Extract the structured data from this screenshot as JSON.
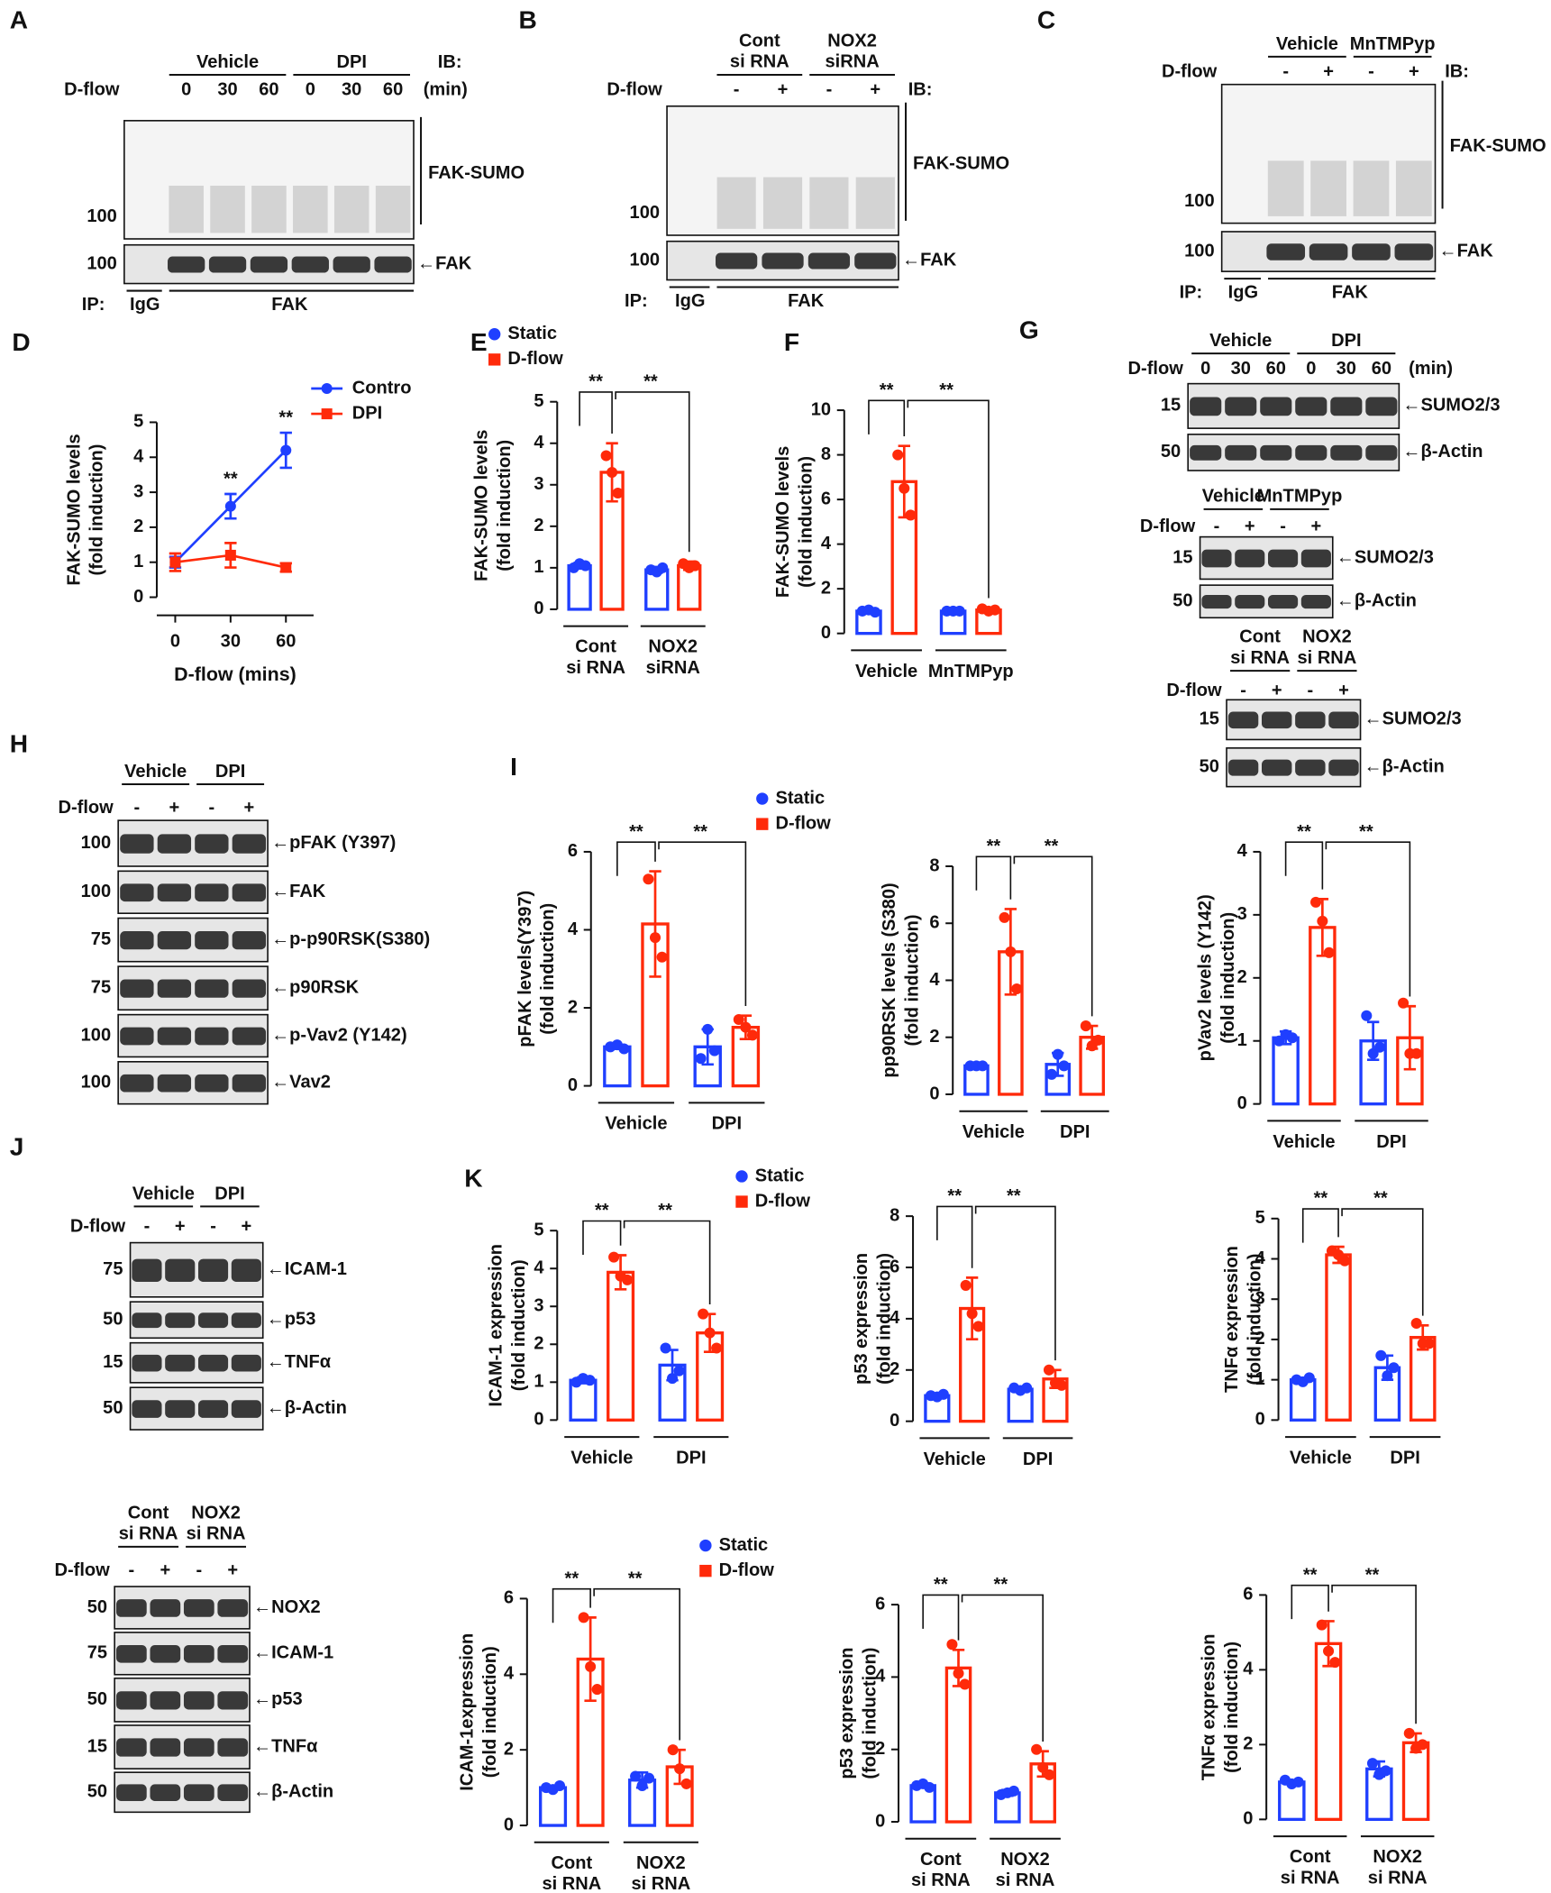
{
  "blots": [
    {
      "letter": "A",
      "groups": [
        "Vehicle",
        "DPI"
      ],
      "ib": "IB:",
      "flow": "D-flow",
      "lanes": [
        "0",
        "30",
        "60",
        "0",
        "30",
        "60"
      ],
      "unit": "(min)",
      "rows": [
        {
          "mw": "100",
          "label": "FAK-SUMO"
        },
        {
          "mw": "100",
          "label": "←FAK"
        }
      ],
      "ip": {
        "label": "IP:",
        "groups": [
          "IgG",
          "FAK"
        ]
      }
    },
    {
      "letter": "B",
      "groups": [
        "Cont\nsi RNA",
        "NOX2\nsiRNA"
      ],
      "ib": "IB:",
      "flow": "D-flow",
      "lanes": [
        "-",
        "+",
        "-",
        "+"
      ],
      "rows": [
        {
          "mw": "100",
          "label": "FAK-SUMO"
        },
        {
          "mw": "100",
          "label": "←FAK"
        }
      ],
      "ip": {
        "label": "IP:",
        "groups": [
          "IgG",
          "FAK"
        ]
      }
    },
    {
      "letter": "C",
      "groups": [
        "Vehicle",
        "MnTMPyp"
      ],
      "ib": "IB:",
      "flow": "D-flow",
      "lanes": [
        "-",
        "+",
        "-",
        "+"
      ],
      "rows": [
        {
          "mw": "100",
          "label": "FAK-SUMO"
        },
        {
          "mw": "100",
          "label": "←FAK"
        }
      ],
      "ip": {
        "label": "IP:",
        "groups": [
          "IgG",
          "FAK"
        ]
      }
    },
    {
      "letter": "G",
      "groups": [
        "Vehicle",
        "DPI"
      ],
      "flow": "D-flow",
      "lanes": [
        "0",
        "30",
        "60",
        "0",
        "30",
        "60"
      ],
      "unit": "(min)",
      "rows": [
        {
          "mw": "15",
          "label": "←SUMO2/3"
        },
        {
          "mw": "50",
          "label": "←β-Actin"
        }
      ]
    },
    {
      "groups": [
        "Vehicle",
        "MnTMPyp"
      ],
      "flow": "D-flow",
      "lanes": [
        "-",
        "+",
        "-",
        "+"
      ],
      "rows": [
        {
          "mw": "15",
          "label": "←SUMO2/3"
        },
        {
          "mw": "50",
          "label": "←β-Actin"
        }
      ]
    },
    {
      "groups": [
        "Cont\nsi RNA",
        "NOX2\nsi RNA"
      ],
      "flow": "D-flow",
      "lanes": [
        "-",
        "+",
        "-",
        "+"
      ],
      "rows": [
        {
          "mw": "15",
          "label": "←SUMO2/3"
        },
        {
          "mw": "50",
          "label": "←β-Actin"
        }
      ]
    },
    {
      "letter": "H",
      "groups": [
        "Vehicle",
        "DPI"
      ],
      "flow": "D-flow",
      "lanes": [
        "-",
        "+",
        "-",
        "+"
      ],
      "rows": [
        {
          "mw": "100",
          "label": "←pFAK (Y397)"
        },
        {
          "mw": "100",
          "label": "←FAK"
        },
        {
          "mw": "75",
          "label": "←p-p90RSK(S380)"
        },
        {
          "mw": "75",
          "label": "←p90RSK"
        },
        {
          "mw": "100",
          "label": "←p-Vav2 (Y142)"
        },
        {
          "mw": "100",
          "label": "←Vav2"
        }
      ]
    },
    {
      "letter": "J",
      "groups": [
        "Vehicle",
        "DPI"
      ],
      "flow": "D-flow",
      "lanes": [
        "-",
        "+",
        "-",
        "+"
      ],
      "rows": [
        {
          "mw": "75",
          "label": "←ICAM-1"
        },
        {
          "mw": "50",
          "label": "←p53"
        },
        {
          "mw": "15",
          "label": "←TNFα"
        },
        {
          "mw": "50",
          "label": "←β-Actin"
        }
      ]
    },
    {
      "groups": [
        "Cont\nsi RNA",
        "NOX2\nsi RNA"
      ],
      "flow": "D-flow",
      "lanes": [
        "-",
        "+",
        "-",
        "+"
      ],
      "rows": [
        {
          "mw": "50",
          "label": "←NOX2"
        },
        {
          "mw": "75",
          "label": "←ICAM-1"
        },
        {
          "mw": "50",
          "label": "←p53"
        },
        {
          "mw": "15",
          "label": "←TNFα"
        },
        {
          "mw": "50",
          "label": "←β-Actin"
        }
      ]
    }
  ],
  "chart_data": [
    {
      "type": "line",
      "letter": "D",
      "x": [
        0,
        30,
        60
      ],
      "xlim": [
        -10,
        75
      ],
      "xticks": [
        0,
        30,
        60
      ],
      "ylim": [
        0,
        5
      ],
      "yticks": [
        0,
        1,
        2,
        3,
        4,
        5
      ],
      "x_label": "D-flow (mins)",
      "y_label": [
        "FAK-SUMO levels",
        "(fold induction)"
      ],
      "series": [
        {
          "name": "Contro",
          "color": "#1f3fff",
          "values": [
            1.0,
            2.6,
            4.2
          ],
          "errors": [
            0.15,
            0.35,
            0.5
          ]
        },
        {
          "name": "DPI",
          "color": "#ff2a0a",
          "values": [
            1.0,
            1.2,
            0.85
          ],
          "errors": [
            0.25,
            0.35,
            0.12
          ]
        }
      ],
      "annotations": [
        {
          "x": 30,
          "text": "**"
        },
        {
          "x": 60,
          "text": "**"
        }
      ]
    },
    {
      "type": "bar",
      "letter": "E",
      "categories": [
        "Cont\nsi RNA",
        "NOX2\nsiRNA"
      ],
      "ylim": [
        0,
        5
      ],
      "yticks": [
        0,
        1,
        2,
        3,
        4,
        5
      ],
      "y_label": [
        "FAK-SUMO levels",
        "(fold induction)"
      ],
      "significance": [
        "**",
        "**"
      ],
      "series": [
        {
          "name": "Static",
          "color": "#1f3fff",
          "values": [
            1.05,
            0.95
          ],
          "errors": [
            0.07,
            0.07
          ],
          "points": [
            [
              1.0,
              1.1,
              1.05
            ],
            [
              0.95,
              0.9,
              1.0
            ]
          ]
        },
        {
          "name": "D-flow",
          "color": "#ff2a0a",
          "values": [
            3.3,
            1.05
          ],
          "errors": [
            0.7,
            0.1
          ],
          "points": [
            [
              3.7,
              3.3,
              2.8
            ],
            [
              1.1,
              1.0,
              1.05
            ]
          ]
        }
      ]
    },
    {
      "type": "bar",
      "letter": "F",
      "categories": [
        "Vehicle",
        "MnTMPyp"
      ],
      "ylim": [
        0,
        10
      ],
      "yticks": [
        0,
        2,
        4,
        6,
        8,
        10
      ],
      "y_label": [
        "FAK-SUMO levels",
        "(fold induction)"
      ],
      "significance": [
        "**",
        "**"
      ],
      "series": [
        {
          "color": "#1f3fff",
          "values": [
            1.0,
            1.0
          ],
          "errors": [
            0.05,
            0.05
          ],
          "points": [
            [
              1.0,
              1.05,
              0.95
            ],
            [
              1.0,
              1.0,
              1.0
            ]
          ]
        },
        {
          "color": "#ff2a0a",
          "values": [
            6.8,
            1.05
          ],
          "errors": [
            1.6,
            0.1
          ],
          "points": [
            [
              8.0,
              6.5,
              5.3
            ],
            [
              1.1,
              1.0,
              1.05
            ]
          ]
        }
      ]
    },
    {
      "type": "bar",
      "letter": "I",
      "categories": [
        "Vehicle",
        "DPI"
      ],
      "ylim": [
        0,
        6
      ],
      "yticks": [
        0,
        2,
        4,
        6
      ],
      "y_label": [
        "pFAK levels(Y397)",
        "(fold induction)"
      ],
      "significance": [
        "**",
        "**"
      ],
      "series": [
        {
          "name": "Static",
          "color": "#1f3fff",
          "values": [
            1.0,
            1.0
          ],
          "errors": [
            0.05,
            0.45
          ],
          "points": [
            [
              1.0,
              1.05,
              0.95
            ],
            [
              0.7,
              1.45,
              0.9
            ]
          ]
        },
        {
          "name": "D-flow",
          "color": "#ff2a0a",
          "values": [
            4.15,
            1.5
          ],
          "errors": [
            1.35,
            0.3
          ],
          "points": [
            [
              5.3,
              3.8,
              3.3
            ],
            [
              1.7,
              1.5,
              1.3
            ]
          ]
        }
      ]
    },
    {
      "type": "bar",
      "categories": [
        "Vehicle",
        "DPI"
      ],
      "ylim": [
        0,
        8
      ],
      "yticks": [
        0,
        2,
        4,
        6,
        8
      ],
      "y_label": [
        "pp90RSK levels  (S380)",
        "(fold induction)"
      ],
      "significance": [
        "**",
        "**"
      ],
      "series": [
        {
          "color": "#1f3fff",
          "values": [
            1.0,
            1.05
          ],
          "errors": [
            0.05,
            0.4
          ],
          "points": [
            [
              1.0,
              1.0,
              1.0
            ],
            [
              0.7,
              1.4,
              1.0
            ]
          ]
        },
        {
          "color": "#ff2a0a",
          "values": [
            5.0,
            2.0
          ],
          "errors": [
            1.5,
            0.4
          ],
          "points": [
            [
              6.2,
              5.0,
              3.7
            ],
            [
              2.4,
              1.7,
              1.9
            ]
          ]
        }
      ]
    },
    {
      "type": "bar",
      "categories": [
        "Vehicle",
        "DPI"
      ],
      "ylim": [
        0,
        4
      ],
      "yticks": [
        0,
        1,
        2,
        3,
        4
      ],
      "y_label": [
        "pVav2 levels (Y142)",
        "(fold induction)"
      ],
      "significance": [
        "**",
        "**"
      ],
      "series": [
        {
          "color": "#1f3fff",
          "values": [
            1.05,
            1.0
          ],
          "errors": [
            0.1,
            0.3
          ],
          "points": [
            [
              1.0,
              1.1,
              1.05
            ],
            [
              1.4,
              0.8,
              0.9
            ]
          ]
        },
        {
          "color": "#ff2a0a",
          "values": [
            2.8,
            1.05
          ],
          "errors": [
            0.45,
            0.5
          ],
          "points": [
            [
              3.2,
              2.9,
              2.4
            ],
            [
              1.6,
              0.8,
              0.8
            ]
          ]
        }
      ]
    },
    {
      "type": "bar",
      "letter": "K",
      "categories": [
        "Vehicle",
        "DPI"
      ],
      "ylim": [
        0,
        5
      ],
      "yticks": [
        0,
        1,
        2,
        3,
        4,
        5
      ],
      "y_label": [
        "ICAM-1 expression",
        "(fold induction)"
      ],
      "significance": [
        "**",
        "**"
      ],
      "series": [
        {
          "name": "Static",
          "color": "#1f3fff",
          "values": [
            1.05,
            1.45
          ],
          "errors": [
            0.08,
            0.4
          ],
          "points": [
            [
              1.0,
              1.1,
              1.05
            ],
            [
              1.9,
              1.1,
              1.3
            ]
          ]
        },
        {
          "name": "D-flow",
          "color": "#ff2a0a",
          "values": [
            3.9,
            2.3
          ],
          "errors": [
            0.45,
            0.5
          ],
          "points": [
            [
              4.3,
              3.8,
              3.7
            ],
            [
              2.8,
              2.3,
              1.9
            ]
          ]
        }
      ]
    },
    {
      "type": "bar",
      "categories": [
        "Vehicle",
        "DPI"
      ],
      "ylim": [
        0,
        8
      ],
      "yticks": [
        0,
        2,
        4,
        6,
        8
      ],
      "y_label": [
        "p53 expression",
        "(fold induction)"
      ],
      "significance": [
        "**",
        "**"
      ],
      "series": [
        {
          "color": "#1f3fff",
          "values": [
            1.0,
            1.25
          ],
          "errors": [
            0.05,
            0.1
          ],
          "points": [
            [
              1.0,
              0.95,
              1.05
            ],
            [
              1.3,
              1.2,
              1.3
            ]
          ]
        },
        {
          "color": "#ff2a0a",
          "values": [
            4.4,
            1.65
          ],
          "errors": [
            1.2,
            0.35
          ],
          "points": [
            [
              5.3,
              4.2,
              3.7
            ],
            [
              2.0,
              1.5,
              1.4
            ]
          ]
        }
      ]
    },
    {
      "type": "bar",
      "categories": [
        "Vehicle",
        "DPI"
      ],
      "ylim": [
        0,
        5
      ],
      "yticks": [
        0,
        1,
        2,
        3,
        4,
        5
      ],
      "y_label": [
        "TNFα expression",
        "(fold induction)"
      ],
      "significance": [
        "**",
        "**"
      ],
      "series": [
        {
          "color": "#1f3fff",
          "values": [
            1.0,
            1.3
          ],
          "errors": [
            0.05,
            0.3
          ],
          "points": [
            [
              1.0,
              0.95,
              1.05
            ],
            [
              1.6,
              1.1,
              1.3
            ]
          ]
        },
        {
          "color": "#ff2a0a",
          "values": [
            4.1,
            2.05
          ],
          "errors": [
            0.2,
            0.3
          ],
          "points": [
            [
              4.2,
              4.1,
              3.95
            ],
            [
              2.4,
              1.9,
              1.9
            ]
          ]
        }
      ]
    },
    {
      "type": "bar",
      "categories": [
        "Cont\nsi RNA",
        "NOX2\nsi RNA"
      ],
      "ylim": [
        0,
        6
      ],
      "yticks": [
        0,
        2,
        4,
        6
      ],
      "y_label": [
        "ICAM-1expression",
        "(fold induction)"
      ],
      "significance": [
        "**",
        "**"
      ],
      "series": [
        {
          "name": "Static",
          "color": "#1f3fff",
          "values": [
            1.0,
            1.2
          ],
          "errors": [
            0.05,
            0.2
          ],
          "points": [
            [
              1.0,
              0.95,
              1.05
            ],
            [
              1.3,
              1.05,
              1.25
            ]
          ]
        },
        {
          "name": "D-flow",
          "color": "#ff2a0a",
          "values": [
            4.4,
            1.55
          ],
          "errors": [
            1.1,
            0.45
          ],
          "points": [
            [
              5.5,
              4.2,
              3.6
            ],
            [
              2.0,
              1.5,
              1.1
            ]
          ]
        }
      ]
    },
    {
      "type": "bar",
      "categories": [
        "Cont\nsi RNA",
        "NOX2\nsi RNA"
      ],
      "ylim": [
        0,
        6
      ],
      "yticks": [
        0,
        2,
        4,
        6
      ],
      "y_label": [
        "p53 expression",
        "(fold induction)"
      ],
      "significance": [
        "**",
        "**"
      ],
      "series": [
        {
          "color": "#1f3fff",
          "values": [
            1.0,
            0.8
          ],
          "errors": [
            0.05,
            0.08
          ],
          "points": [
            [
              1.0,
              1.05,
              0.95
            ],
            [
              0.75,
              0.8,
              0.85
            ]
          ]
        },
        {
          "color": "#ff2a0a",
          "values": [
            4.25,
            1.6
          ],
          "errors": [
            0.5,
            0.35
          ],
          "points": [
            [
              4.9,
              4.1,
              3.8
            ],
            [
              2.0,
              1.5,
              1.3
            ]
          ]
        }
      ]
    },
    {
      "type": "bar",
      "categories": [
        "Cont\nsi RNA",
        "NOX2\nsi RNA"
      ],
      "ylim": [
        0,
        6
      ],
      "yticks": [
        0,
        2,
        4,
        6
      ],
      "y_label": [
        "TNFα expression",
        "(fold induction)"
      ],
      "significance": [
        "**",
        "**"
      ],
      "series": [
        {
          "color": "#1f3fff",
          "values": [
            1.0,
            1.35
          ],
          "errors": [
            0.05,
            0.2
          ],
          "points": [
            [
              1.05,
              0.95,
              1.0
            ],
            [
              1.5,
              1.2,
              1.3
            ]
          ]
        },
        {
          "color": "#ff2a0a",
          "values": [
            4.7,
            2.05
          ],
          "errors": [
            0.6,
            0.25
          ],
          "points": [
            [
              5.2,
              4.5,
              4.2
            ],
            [
              2.3,
              1.9,
              2.0
            ]
          ]
        }
      ]
    }
  ]
}
